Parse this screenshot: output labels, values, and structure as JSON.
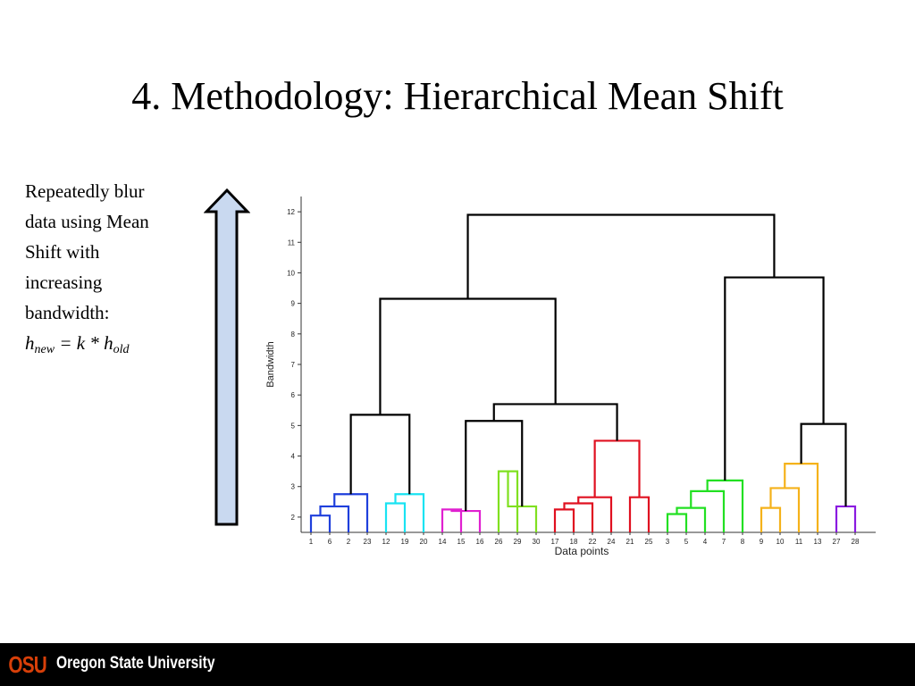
{
  "slide": {
    "title": "4. Methodology: Hierarchical Mean Shift",
    "description_lines": [
      "Repeatedly blur",
      "data using Mean",
      "Shift with",
      "increasing",
      "bandwidth:"
    ],
    "formula": {
      "h": "h",
      "new": "new",
      "eq": " = k * ",
      "h2": "h",
      "old": "old"
    },
    "arrow_color": "#c9d9f0"
  },
  "chart_data": {
    "type": "dendrogram",
    "xlabel": "Data points",
    "ylabel": "Bandwidth",
    "ylim": [
      1.5,
      12.5
    ],
    "yticks": [
      2,
      3,
      4,
      5,
      6,
      7,
      8,
      9,
      10,
      11,
      12
    ],
    "leaves": [
      "1",
      "6",
      "2",
      "23",
      "12",
      "19",
      "20",
      "14",
      "15",
      "16",
      "26",
      "29",
      "30",
      "17",
      "18",
      "22",
      "24",
      "21",
      "25",
      "3",
      "5",
      "4",
      "7",
      "8",
      "9",
      "10",
      "11",
      "13",
      "27",
      "28"
    ],
    "merges": [
      {
        "a": 0,
        "b": 1,
        "h": 2.05,
        "color": "#1f3fdc"
      },
      {
        "a": 30,
        "b": 2,
        "h": 2.35,
        "color": "#1f3fdc"
      },
      {
        "a": 31,
        "b": 3,
        "h": 2.75,
        "color": "#1f3fdc"
      },
      {
        "a": 4,
        "b": 5,
        "h": 2.45,
        "color": "#19e3f2"
      },
      {
        "a": 33,
        "b": 6,
        "h": 2.75,
        "color": "#19e3f2"
      },
      {
        "a": 7,
        "b": 8,
        "h": 2.25,
        "color": "#e020d0"
      },
      {
        "a": 35,
        "b": 9,
        "h": 2.2,
        "color": "#e020d0"
      },
      {
        "a": 10,
        "b": 11,
        "h": 3.5,
        "color": "#80e020"
      },
      {
        "a": 37,
        "b": 12,
        "h": 2.35,
        "color": "#80e020"
      },
      {
        "a": 13,
        "b": 14,
        "h": 2.25,
        "color": "#e01020"
      },
      {
        "a": 39,
        "b": 15,
        "h": 2.45,
        "color": "#e01020"
      },
      {
        "a": 40,
        "b": 16,
        "h": 2.65,
        "color": "#e01020"
      },
      {
        "a": 17,
        "b": 18,
        "h": 2.65,
        "color": "#e01020"
      },
      {
        "a": 41,
        "b": 42,
        "h": 4.5,
        "color": "#e01020"
      },
      {
        "a": 19,
        "b": 20,
        "h": 2.1,
        "color": "#22e022"
      },
      {
        "a": 44,
        "b": 21,
        "h": 2.3,
        "color": "#22e022"
      },
      {
        "a": 45,
        "b": 22,
        "h": 2.85,
        "color": "#22e022"
      },
      {
        "a": 46,
        "b": 23,
        "h": 3.2,
        "color": "#22e022"
      },
      {
        "a": 24,
        "b": 25,
        "h": 2.3,
        "color": "#f5b21a"
      },
      {
        "a": 48,
        "b": 26,
        "h": 2.95,
        "color": "#f5b21a"
      },
      {
        "a": 49,
        "b": 27,
        "h": 3.75,
        "color": "#f5b21a"
      },
      {
        "a": 28,
        "b": 29,
        "h": 2.35,
        "color": "#8a1ae0"
      },
      {
        "a": 32,
        "b": 34,
        "h": 5.35,
        "color": "#000000"
      },
      {
        "a": 36,
        "b": 38,
        "h": 5.15,
        "color": "#000000"
      },
      {
        "a": 53,
        "b": 43,
        "h": 5.7,
        "color": "#000000"
      },
      {
        "a": 52,
        "b": 54,
        "h": 9.15,
        "color": "#000000"
      },
      {
        "a": 50,
        "b": 51,
        "h": 5.05,
        "color": "#000000"
      },
      {
        "a": 47,
        "b": 56,
        "h": 9.85,
        "color": "#000000"
      },
      {
        "a": 55,
        "b": 57,
        "h": 11.9,
        "color": "#000000"
      }
    ]
  },
  "footer": {
    "logo_text": "OSU",
    "university": "Oregon State University",
    "logo_color": "#d73f09"
  }
}
